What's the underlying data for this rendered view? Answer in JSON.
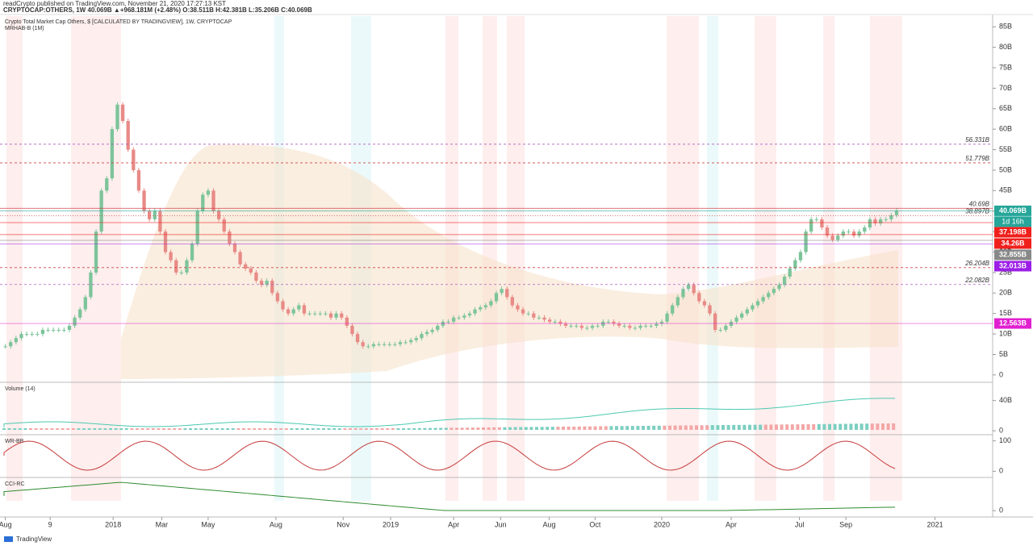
{
  "header": {
    "published": "readCrypto published on TradingView.com, November 21, 2020 17:27:13 KST",
    "symbol": "CRYPTOCAP:OTHERS, 1W 40.069B ▲+968.181M (+2.48%) O:38.511B H:42.381B L:35.206B C:40.069B",
    "description": "Crypto Total Market Cap Others, $ [CALCULATED BY TRADINGVIEW], 1W, CRYPTOCAP",
    "indicator": "MRHAB-B (1M)"
  },
  "chart_data": {
    "type": "candlestick",
    "x": [
      1,
      2,
      3,
      4,
      5,
      6,
      7,
      8,
      9,
      10,
      11,
      12,
      13,
      14,
      15,
      16,
      17,
      18,
      19,
      20,
      21,
      22,
      23,
      24,
      25,
      26,
      27,
      28,
      29,
      30,
      31,
      32,
      33,
      34,
      35,
      36,
      37,
      38,
      39,
      40,
      41,
      42,
      43,
      44,
      45,
      46,
      47,
      48,
      49,
      50,
      51,
      52,
      53,
      54,
      55,
      56,
      57,
      58,
      59,
      60,
      61,
      62,
      63,
      64,
      65,
      66,
      67,
      68,
      69,
      70,
      71,
      72,
      73,
      74,
      75,
      76,
      77,
      78,
      79,
      80,
      81,
      82,
      83,
      84,
      85,
      86,
      87,
      88,
      89,
      90,
      91,
      92,
      93,
      94,
      95,
      96,
      97,
      98,
      99,
      100,
      101,
      102,
      103,
      104,
      105,
      106,
      107,
      108,
      109,
      110,
      111,
      112,
      113,
      114,
      115,
      116,
      117,
      118,
      119,
      120,
      121,
      122,
      123,
      124,
      125,
      126,
      127,
      128,
      129,
      130,
      131,
      132,
      133,
      134,
      135,
      136,
      137,
      138,
      139,
      140,
      141,
      142,
      143,
      144,
      145,
      146,
      147,
      148,
      149,
      150,
      151,
      152,
      153,
      154,
      155,
      156,
      157,
      158,
      159,
      160,
      161,
      162,
      163,
      164,
      165,
      166,
      167,
      168
    ],
    "values": [
      7,
      8,
      9,
      10,
      10,
      10,
      10,
      11,
      11,
      11,
      11,
      11,
      12,
      14,
      16,
      19,
      25,
      35,
      45,
      48,
      60,
      66,
      62,
      55,
      50,
      45,
      40,
      38,
      40,
      35,
      30,
      28,
      25,
      25,
      28,
      32,
      40,
      44,
      45,
      40,
      38,
      35,
      32,
      30,
      27,
      26,
      25,
      23,
      22,
      23,
      20,
      18,
      16,
      15,
      16,
      17,
      15,
      15,
      15,
      15,
      15,
      14,
      15,
      14,
      12,
      10,
      8,
      7,
      7,
      7.5,
      7.5,
      7.5,
      7.5,
      7.5,
      8,
      8,
      8.5,
      9,
      10,
      10.5,
      11,
      12,
      13,
      13,
      14,
      14,
      14.5,
      15,
      16,
      16.5,
      17,
      18,
      20,
      21,
      19,
      17,
      16,
      15,
      15,
      14,
      14,
      13.5,
      13,
      13,
      12.5,
      12,
      12,
      12,
      11.5,
      11.5,
      12,
      12,
      13,
      13,
      12.5,
      12,
      12,
      11.5,
      11.5,
      12,
      12,
      12,
      12.5,
      13,
      15,
      17,
      19,
      21,
      22,
      20,
      18,
      17,
      15,
      11,
      11,
      12,
      13,
      14,
      15,
      16,
      17,
      18,
      19,
      20,
      21,
      22,
      24,
      26,
      28,
      30,
      35,
      38,
      38,
      36,
      34,
      33,
      34,
      35,
      35,
      34,
      35,
      36,
      38,
      37,
      38,
      38,
      39,
      40.069
    ],
    "xlim": [
      0,
      186
    ],
    "xticks": [
      {
        "value": 1,
        "label": "Aug"
      },
      {
        "value": 9.4,
        "label": "9"
      },
      {
        "value": 21.2,
        "label": "2018"
      },
      {
        "value": 30.3,
        "label": "Mar"
      },
      {
        "value": 39,
        "label": "May"
      },
      {
        "value": 51.7,
        "label": "Aug"
      },
      {
        "value": 64.3,
        "label": "Nov"
      },
      {
        "value": 73.2,
        "label": "2019"
      },
      {
        "value": 85,
        "label": "Apr"
      },
      {
        "value": 93.8,
        "label": "Jun"
      },
      {
        "value": 102.9,
        "label": "Aug"
      },
      {
        "value": 111.5,
        "label": "Oct"
      },
      {
        "value": 124,
        "label": "2020"
      },
      {
        "value": 137,
        "label": "Apr"
      },
      {
        "value": 149.8,
        "label": "Jul"
      },
      {
        "value": 158.5,
        "label": "Sep"
      },
      {
        "value": 175.2,
        "label": "2021"
      }
    ],
    "ylim": [
      -1.4,
      87.6
    ],
    "yticks": [
      0,
      {
        "value": 5,
        "label": "5B"
      },
      {
        "value": 10,
        "label": "10B"
      },
      {
        "value": 15,
        "label": "15B"
      },
      {
        "value": 20,
        "label": "20B"
      },
      {
        "value": 25,
        "label": "25B"
      },
      {
        "value": 30,
        "label": "30B"
      },
      {
        "value": 35,
        "label": "35B"
      },
      {
        "value": 40,
        "label": "40B"
      },
      {
        "value": 45,
        "label": "45B"
      },
      {
        "value": 50,
        "label": "50B"
      },
      {
        "value": 55,
        "label": "55B"
      },
      {
        "value": 60,
        "label": "60B"
      },
      {
        "value": 65,
        "label": "65B"
      },
      {
        "value": 70,
        "label": "70B"
      },
      {
        "value": 75,
        "label": "75B"
      },
      {
        "value": 80,
        "label": "80B"
      },
      {
        "value": 85,
        "label": "85B"
      }
    ],
    "up_color": "#7cc49a",
    "down_color": "#e88a86",
    "levels": [
      {
        "value": 56.331,
        "label": "56.331B",
        "color": "#b05cc0",
        "dash": "3,3"
      },
      {
        "value": 51.779,
        "label": "51.779B",
        "color": "#d0454a",
        "dash": "3,3"
      },
      {
        "value": 40.69,
        "label": "40.69B",
        "color": "#d0454a",
        "dash": "none"
      },
      {
        "value": 38.897,
        "label": "38.897B",
        "color": "#d0454a",
        "dash": "1,2"
      },
      {
        "value": 26.204,
        "label": "26.204B",
        "color": "#d0454a",
        "dash": "3,3"
      },
      {
        "value": 22.082,
        "label": "22.082B",
        "color": "#b05cc0",
        "dash": "3,3"
      }
    ],
    "price_tags": [
      {
        "value": 40.069,
        "label": "40.069B",
        "color": "#26a69a"
      },
      {
        "value": 37.198,
        "label": "37.198B",
        "color": "#f0201c"
      },
      {
        "value": 34.26,
        "label": "34.26B",
        "color": "#f0201c"
      },
      {
        "value": 32.855,
        "label": "32.855B",
        "color": "#888888"
      },
      {
        "value": 32.013,
        "label": "32.013B",
        "color": "#9c1ee6"
      },
      {
        "value": 12.563,
        "label": "12.563B",
        "color": "#e020d0"
      }
    ],
    "countdown": "1d 16h",
    "panes": [
      {
        "title": "Volume (14)",
        "ylim": [
          -3,
          62
        ],
        "ticks": [
          {
            "value": 40,
            "label": "40B"
          },
          0
        ]
      },
      {
        "title": "WR-BB",
        "ylim": [
          -15,
          115
        ],
        "ticks": [
          100,
          0
        ]
      },
      {
        "title": "CCI-RC",
        "ylim": [
          -3,
          20
        ],
        "ticks": [
          0
        ]
      }
    ]
  },
  "footer": {
    "brand": "TradingView"
  }
}
